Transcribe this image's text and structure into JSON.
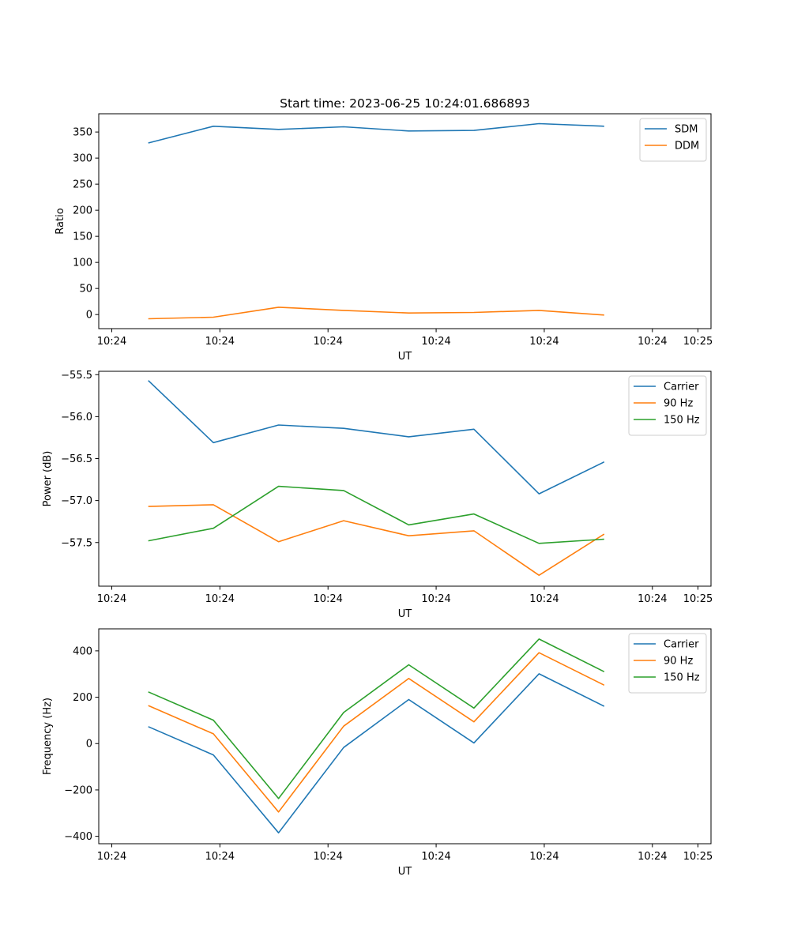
{
  "figure": {
    "title": "Start time: 2023-06-25 10:24:01.686893"
  },
  "colors": {
    "blue": "#1f77b4",
    "orange": "#ff7f0e",
    "green": "#2ca02c"
  },
  "chart_data": [
    {
      "type": "line",
      "title": "Start time: 2023-06-25 10:24:01.686893",
      "xlabel": "UT",
      "ylabel": "Ratio",
      "x_tick_labels": [
        "10:24",
        "10:24",
        "10:24",
        "10:24",
        "10:24",
        "10:24",
        "10:25"
      ],
      "xlim": [
        0,
        47
      ],
      "x": [
        3.8,
        8.8,
        13.8,
        18.8,
        23.8,
        28.8,
        33.8,
        38.8
      ],
      "ylim": [
        -27,
        385
      ],
      "y_ticks": [
        0,
        50,
        100,
        150,
        200,
        250,
        300,
        350
      ],
      "legend_position": "upper right",
      "series": [
        {
          "name": "SDM",
          "color": "#1f77b4",
          "values": [
            329,
            361,
            355,
            360,
            352,
            353,
            366,
            361
          ]
        },
        {
          "name": "DDM",
          "color": "#ff7f0e",
          "values": [
            -8,
            -5,
            14,
            8,
            3,
            4,
            8,
            -1
          ]
        }
      ]
    },
    {
      "type": "line",
      "title": "",
      "xlabel": "UT",
      "ylabel": "Power (dB)",
      "x_tick_labels": [
        "10:24",
        "10:24",
        "10:24",
        "10:24",
        "10:24",
        "10:24",
        "10:25"
      ],
      "xlim": [
        0,
        47
      ],
      "x": [
        3.8,
        8.8,
        13.8,
        18.8,
        23.8,
        28.8,
        33.8,
        38.8
      ],
      "ylim": [
        -58.02,
        -55.46
      ],
      "y_ticks": [
        -57.5,
        -57.0,
        -56.5,
        -56.0,
        -55.5
      ],
      "y_tick_labels": [
        "−57.5",
        "−57.0",
        "−56.5",
        "−56.0",
        "−55.5"
      ],
      "legend_position": "upper right",
      "series": [
        {
          "name": "Carrier",
          "color": "#1f77b4",
          "values": [
            -55.57,
            -56.31,
            -56.1,
            -56.14,
            -56.24,
            -56.15,
            -56.92,
            -56.54
          ]
        },
        {
          "name": "90 Hz",
          "color": "#ff7f0e",
          "values": [
            -57.07,
            -57.05,
            -57.49,
            -57.24,
            -57.42,
            -57.36,
            -57.89,
            -57.4
          ]
        },
        {
          "name": "150 Hz",
          "color": "#2ca02c",
          "values": [
            -57.48,
            -57.33,
            -56.83,
            -56.88,
            -57.29,
            -57.16,
            -57.51,
            -57.46
          ]
        }
      ]
    },
    {
      "type": "line",
      "title": "",
      "xlabel": "UT",
      "ylabel": "Frequency (Hz)",
      "x_tick_labels": [
        "10:24",
        "10:24",
        "10:24",
        "10:24",
        "10:24",
        "10:24",
        "10:25"
      ],
      "xlim": [
        0,
        47
      ],
      "x": [
        3.8,
        8.8,
        13.8,
        18.8,
        23.8,
        28.8,
        33.8,
        38.8
      ],
      "ylim": [
        -432,
        495
      ],
      "y_ticks": [
        -400,
        -200,
        0,
        200,
        400
      ],
      "y_tick_labels": [
        "−400",
        "−200",
        "0",
        "200",
        "400"
      ],
      "legend_position": "upper right",
      "series": [
        {
          "name": "Carrier",
          "color": "#1f77b4",
          "values": [
            73,
            -49,
            -385,
            -17,
            190,
            3,
            301,
            161
          ]
        },
        {
          "name": "90 Hz",
          "color": "#ff7f0e",
          "values": [
            164,
            42,
            -295,
            75,
            281,
            94,
            392,
            252
          ]
        },
        {
          "name": "150 Hz",
          "color": "#2ca02c",
          "values": [
            223,
            101,
            -237,
            134,
            340,
            153,
            451,
            310
          ]
        }
      ]
    }
  ]
}
